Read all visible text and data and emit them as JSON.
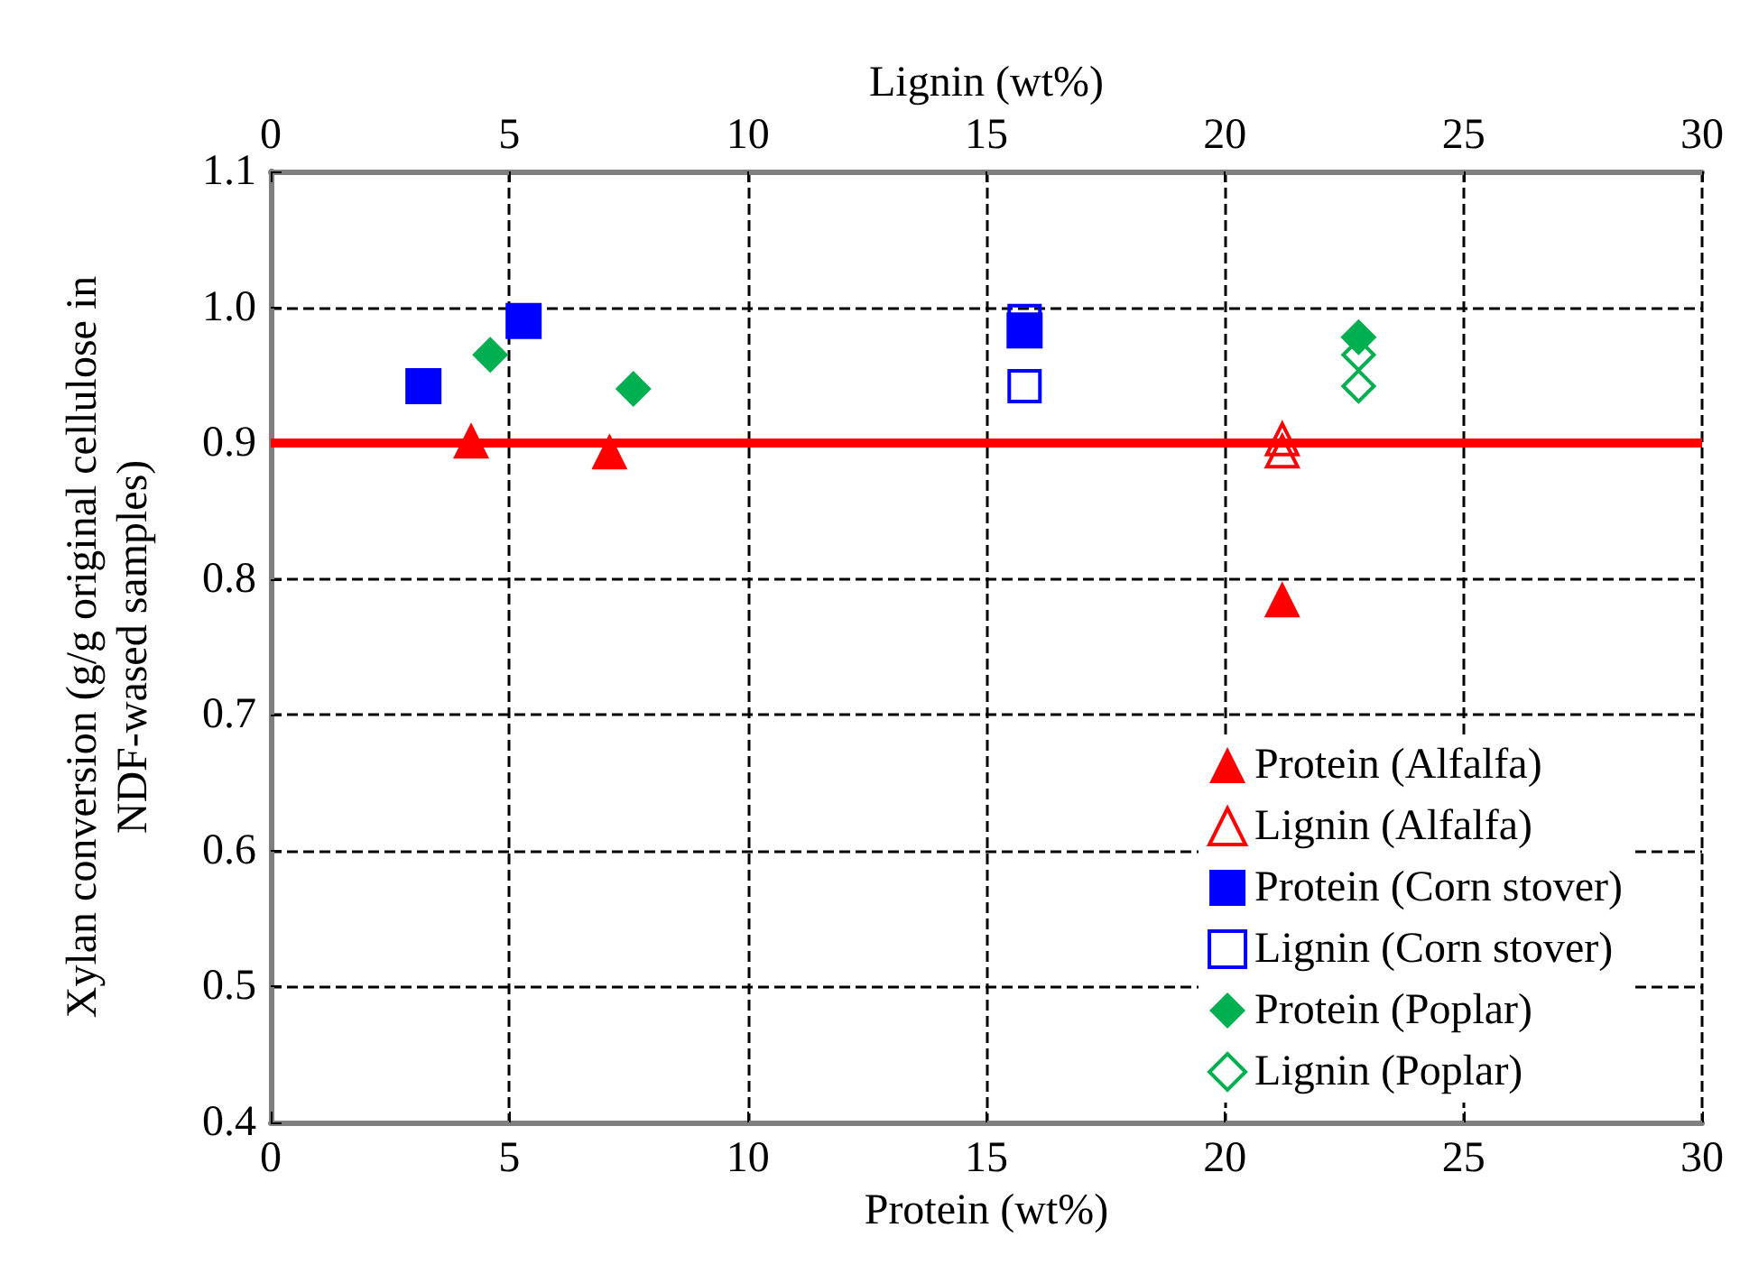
{
  "chart_data": {
    "type": "scatter",
    "xlabel": "Protein (wt%)",
    "x2label": "Lignin (wt%)",
    "ylabel": "Xylan conversion (g/g original cellulose in\nNDF-wased samples)",
    "xlim": [
      0,
      30
    ],
    "xticks": [
      0,
      5,
      10,
      15,
      20,
      25,
      30
    ],
    "x2lim": [
      0,
      30
    ],
    "x2ticks": [
      0,
      5,
      10,
      15,
      20,
      25,
      30
    ],
    "ylim": [
      0.4,
      1.1
    ],
    "yticks": [
      0.4,
      0.5,
      0.6,
      0.7,
      0.8,
      0.9,
      {
        "value": 1.0,
        "label": "1.0"
      },
      1.1
    ],
    "grid": true,
    "legend": "bottom right",
    "ref_lines": [
      {
        "axis": "y",
        "value": 0.9,
        "color": "#ff0000",
        "line_style": "solid"
      }
    ],
    "series": [
      {
        "name": "Protein (Alfalfa)",
        "color": "#ff0000",
        "marker": "triangle",
        "x": [
          4.2,
          7.1,
          21.2
        ],
        "values": [
          0.902,
          0.894,
          0.785
        ]
      },
      {
        "name": "Lignin (Alfalfa)",
        "color": "#ff0000",
        "marker": "triangle",
        "axis": "x2",
        "x": [
          21.2,
          21.2
        ],
        "values": [
          0.903,
          0.894
        ]
      },
      {
        "name": "Protein (Corn stover)",
        "color": "#0000ff",
        "marker": "square",
        "x": [
          3.2,
          5.3,
          15.8
        ],
        "values": [
          0.942,
          0.99,
          0.983
        ]
      },
      {
        "name": "Lignin (Corn stover)",
        "color": "#0000ff",
        "marker": "square",
        "axis": "x2",
        "x": [
          15.8,
          15.8
        ],
        "values": [
          0.99,
          0.942
        ]
      },
      {
        "name": "Protein (Poplar)",
        "color": "#00b050",
        "marker": "diamond",
        "x": [
          4.6,
          7.6,
          22.8
        ],
        "values": [
          0.965,
          0.94,
          0.978
        ]
      },
      {
        "name": "Lignin (Poplar)",
        "color": "#00b050",
        "marker": "diamond",
        "axis": "x2",
        "x": [
          22.8,
          22.8
        ],
        "values": [
          0.965,
          0.942
        ]
      }
    ]
  }
}
